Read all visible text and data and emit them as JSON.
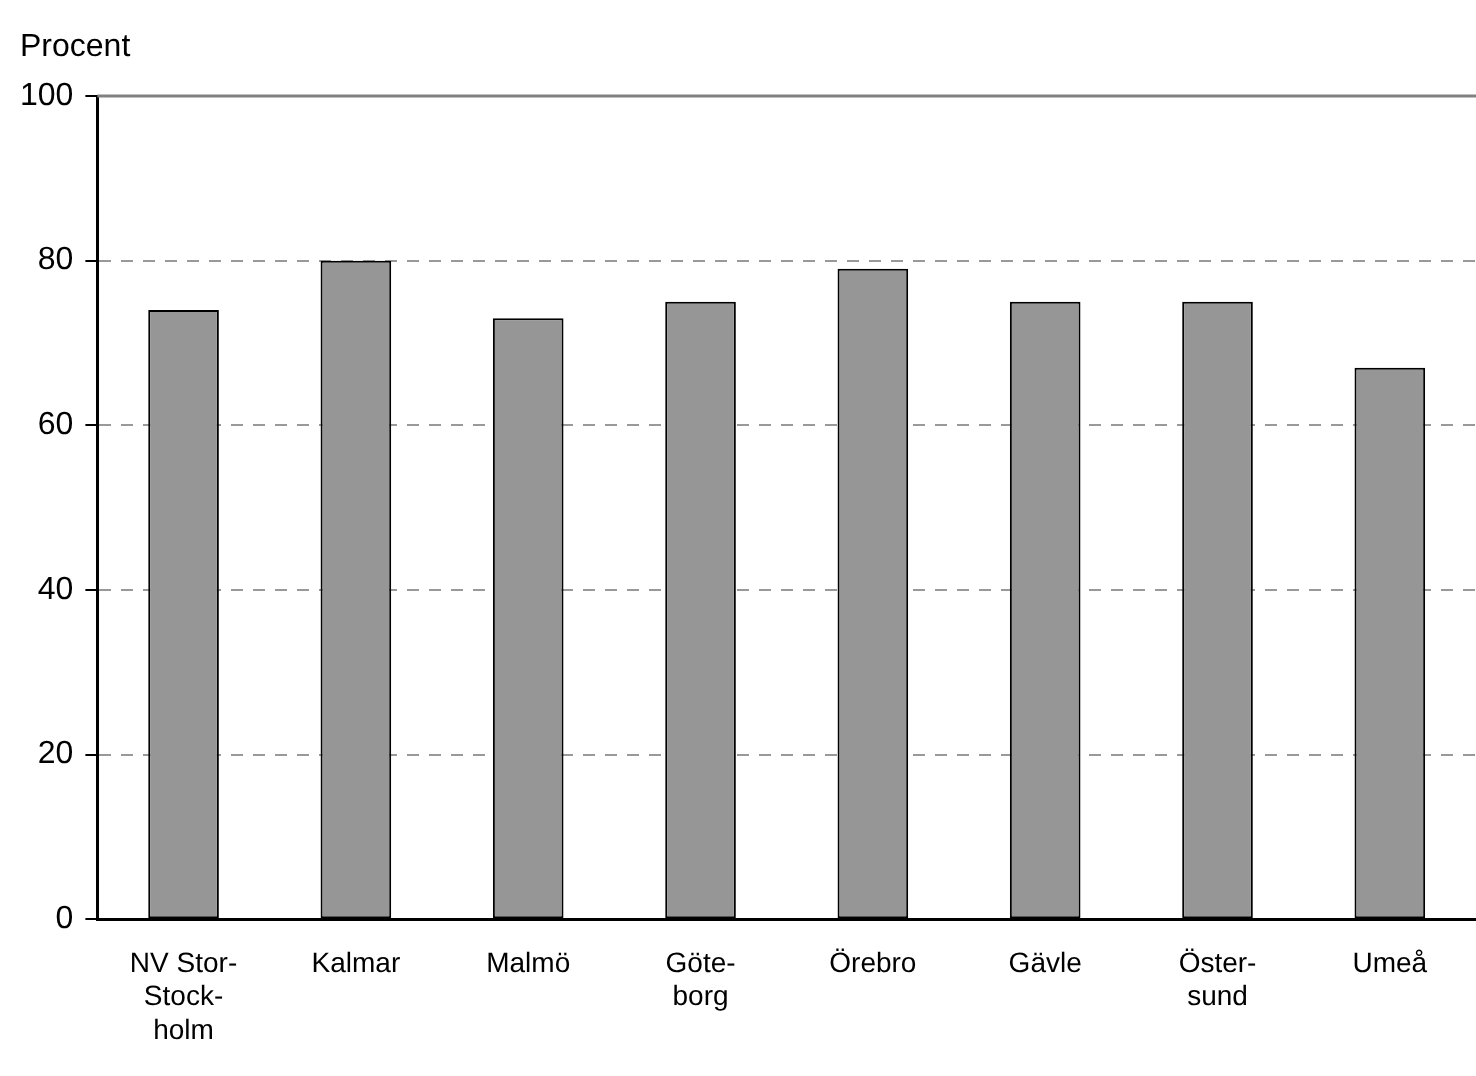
{
  "chart_data": {
    "type": "bar",
    "ylabel": "Procent",
    "categories": [
      "NV Stor-\nStock-\nholm",
      "Kalmar",
      "Malmö",
      "Göte-\nborg",
      "Örebro",
      "Gävle",
      "Öster-\nsund",
      "Umeå"
    ],
    "values": [
      74,
      80,
      73,
      75,
      79,
      75,
      75,
      67
    ],
    "color": "#969696",
    "ylim": [
      0,
      100
    ],
    "yticks": [
      0,
      20,
      40,
      60,
      80,
      100
    ],
    "grid": "y",
    "legend": false
  }
}
